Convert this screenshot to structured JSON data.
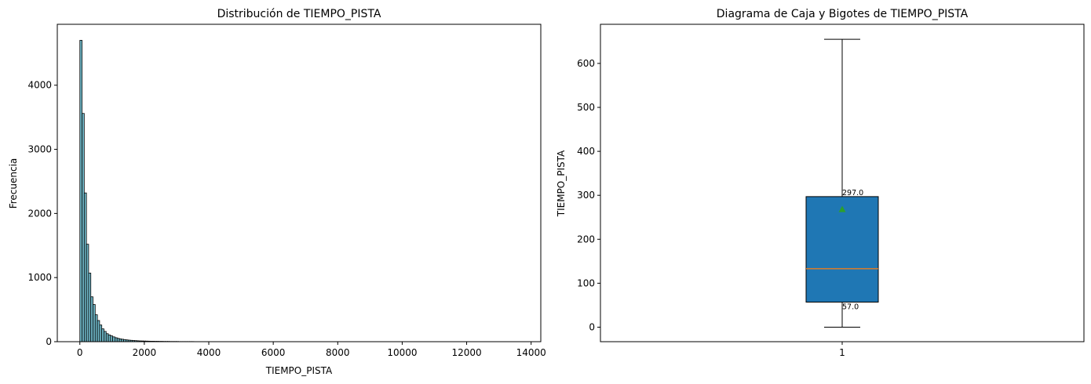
{
  "chart_data": [
    {
      "type": "bar",
      "subtype": "histogram",
      "title": "Distribución de TIEMPO_PISTA",
      "xlabel": "TIEMPO_PISTA",
      "ylabel": "Frecuencia",
      "xlim": [
        -700,
        14300
      ],
      "ylim": [
        0,
        4950
      ],
      "xticks": [
        0,
        2000,
        4000,
        6000,
        8000,
        10000,
        12000,
        14000
      ],
      "yticks": [
        0,
        1000,
        2000,
        3000,
        4000
      ],
      "bin_width": 68,
      "bin_start": 0,
      "values": [
        4700,
        3560,
        2320,
        1520,
        1070,
        700,
        580,
        420,
        330,
        260,
        200,
        160,
        125,
        105,
        90,
        75,
        62,
        52,
        44,
        38,
        33,
        28,
        24,
        21,
        18,
        16,
        14,
        12,
        11,
        10,
        9,
        8,
        7,
        7,
        6,
        6,
        5,
        5,
        4,
        4,
        4,
        3,
        3,
        3,
        3,
        2,
        2,
        2,
        2,
        2,
        2,
        2,
        1,
        1,
        1,
        1,
        1,
        1,
        1,
        1,
        1,
        1,
        1
      ],
      "bar_color": "#6fb7c7",
      "edge_color": "#000000",
      "grid": false
    },
    {
      "type": "boxplot",
      "title": "Diagrama de Caja y Bigotes de TIEMPO_PISTA",
      "xlabel": "",
      "ylabel": "TIEMPO_PISTA",
      "categories": [
        "1"
      ],
      "ylim": [
        -33,
        689
      ],
      "yticks": [
        0,
        100,
        200,
        300,
        400,
        500,
        600
      ],
      "box": {
        "whisker_low": 0,
        "q1": 57,
        "median": 133,
        "q3": 297,
        "whisker_high": 655,
        "mean": 268
      },
      "annotations": [
        "297.0",
        "57.0"
      ],
      "box_color": "#1f77b4",
      "median_color": "#ff7f0e",
      "mean_color": "#2ca02c",
      "grid": false
    }
  ]
}
